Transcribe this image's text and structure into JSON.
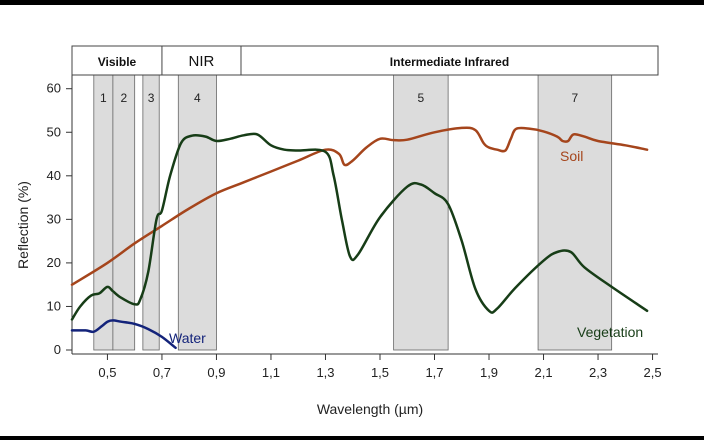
{
  "chart_data": {
    "type": "line",
    "xlabel": "Wavelength (µm)",
    "ylabel": "Reflection (%)",
    "xlim": [
      0.37,
      2.52
    ],
    "ylim": [
      0,
      62
    ],
    "x_ticks": [
      "0,5",
      "0,7",
      "0,9",
      "1,1",
      "1,3",
      "1,5",
      "1,7",
      "1,9",
      "2,1",
      "2,3",
      "2,5"
    ],
    "x_tick_values": [
      0.5,
      0.7,
      0.9,
      1.1,
      1.3,
      1.5,
      1.7,
      1.9,
      2.1,
      2.3,
      2.5
    ],
    "y_ticks": [
      "0",
      "10",
      "20",
      "30",
      "40",
      "50",
      "60"
    ],
    "y_tick_values": [
      0,
      10,
      20,
      30,
      40,
      50,
      60
    ],
    "grid": false,
    "regions": [
      {
        "label": "Visible",
        "x_start": 0.37,
        "x_end": 0.7,
        "style": "bold"
      },
      {
        "label": "NIR",
        "x_start": 0.7,
        "x_end": 0.99,
        "style": "plain"
      },
      {
        "label": "Intermediate Infrared",
        "x_start": 0.99,
        "x_end": 2.52,
        "style": "bold"
      }
    ],
    "bands": [
      {
        "label": "1",
        "x_start": 0.45,
        "x_end": 0.52
      },
      {
        "label": "2",
        "x_start": 0.52,
        "x_end": 0.6
      },
      {
        "label": "3",
        "x_start": 0.63,
        "x_end": 0.69
      },
      {
        "label": "4",
        "x_start": 0.76,
        "x_end": 0.9
      },
      {
        "label": "5",
        "x_start": 1.55,
        "x_end": 1.75
      },
      {
        "label": "7",
        "x_start": 2.08,
        "x_end": 2.35
      }
    ],
    "series": [
      {
        "name": "Soil",
        "color": "#a5451c",
        "x": [
          0.37,
          0.5,
          0.6,
          0.7,
          0.8,
          0.9,
          1.0,
          1.1,
          1.2,
          1.3,
          1.35,
          1.37,
          1.4,
          1.45,
          1.5,
          1.55,
          1.6,
          1.7,
          1.8,
          1.85,
          1.88,
          1.9,
          1.93,
          1.96,
          1.98,
          2.0,
          2.05,
          2.1,
          2.15,
          2.17,
          2.19,
          2.21,
          2.25,
          2.3,
          2.4,
          2.48
        ],
        "y": [
          15,
          20,
          24.5,
          28.5,
          32.5,
          36,
          38.5,
          41,
          43.5,
          46,
          45,
          42.5,
          43.5,
          46.5,
          48.5,
          48.2,
          48.3,
          50,
          51,
          50.5,
          47.5,
          46.5,
          46,
          45.8,
          48.5,
          50.8,
          50.8,
          50.2,
          49,
          48,
          48,
          49.5,
          49,
          48,
          47,
          46
        ]
      },
      {
        "name": "Vegetation",
        "color": "#173d17",
        "x": [
          0.37,
          0.4,
          0.44,
          0.47,
          0.5,
          0.52,
          0.55,
          0.6,
          0.62,
          0.65,
          0.68,
          0.7,
          0.73,
          0.77,
          0.81,
          0.86,
          0.9,
          0.95,
          1.0,
          1.05,
          1.1,
          1.15,
          1.2,
          1.3,
          1.33,
          1.36,
          1.39,
          1.42,
          1.5,
          1.6,
          1.65,
          1.7,
          1.75,
          1.8,
          1.85,
          1.9,
          1.93,
          2.0,
          2.1,
          2.15,
          2.2,
          2.25,
          2.35,
          2.48
        ],
        "y": [
          7,
          10,
          12.5,
          13,
          14.5,
          13.5,
          12,
          10.5,
          11.5,
          18,
          30,
          32,
          40,
          47.5,
          49.2,
          49,
          48,
          48.5,
          49.3,
          49.5,
          47,
          46,
          45.8,
          45.5,
          40,
          30,
          21.5,
          22,
          30.5,
          37.5,
          38,
          36,
          33.5,
          25,
          14,
          9,
          9.5,
          14.5,
          20.5,
          22.5,
          22.5,
          19,
          14.5,
          9
        ]
      },
      {
        "name": "Water",
        "color": "#13237a",
        "x": [
          0.37,
          0.42,
          0.45,
          0.48,
          0.5,
          0.52,
          0.55,
          0.6,
          0.65,
          0.7,
          0.75
        ],
        "y": [
          4.5,
          4.5,
          4.2,
          5.5,
          6.5,
          6.8,
          6.5,
          6,
          4.8,
          3,
          0.5
        ]
      }
    ]
  }
}
